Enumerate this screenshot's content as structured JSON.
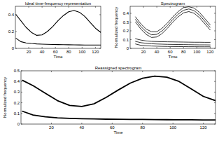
{
  "chart_data": [
    {
      "type": "line",
      "title": "Ideal time-frequency representation",
      "xlabel": "Time",
      "x": [
        1,
        8,
        16,
        24,
        32,
        40,
        48,
        56,
        64,
        72,
        80,
        88,
        96,
        104,
        112,
        120,
        128
      ],
      "series": [
        {
          "color": "#000000",
          "line_style": "solid",
          "values": [
            0.4,
            0.33,
            0.25,
            0.19,
            0.155,
            0.16,
            0.2,
            0.26,
            0.33,
            0.39,
            0.435,
            0.45,
            0.43,
            0.38,
            0.31,
            0.24,
            0.19
          ]
        },
        {
          "color": "#000000",
          "line_style": "solid",
          "values": [
            0.12,
            0.08,
            0.065,
            0.058,
            0.053,
            0.05,
            0.048,
            0.046,
            0.045,
            0.044,
            0.043,
            0.042,
            0.041,
            0.04,
            0.04,
            0.039,
            0.039
          ]
        }
      ],
      "xlim": [
        0,
        128
      ],
      "ylim": [
        0,
        0.5
      ],
      "xticks": [
        20,
        40,
        60,
        80,
        100,
        120
      ],
      "yticks": [
        0,
        0.2,
        0.4
      ]
    },
    {
      "type": "line",
      "title": "Spectrogram",
      "xlabel": "Time",
      "ylabel": "Normalized frequency",
      "x": [
        1,
        8,
        16,
        24,
        32,
        40,
        48,
        56,
        64,
        72,
        80,
        88,
        96,
        104,
        112,
        120,
        128
      ],
      "series": [
        {
          "color": "#000000",
          "line_style": "solid",
          "values": [
            null,
            0.36,
            0.28,
            0.22,
            0.19,
            0.19,
            0.23,
            0.29,
            0.36,
            0.42,
            0.465,
            0.475,
            0.46,
            0.41,
            0.34,
            0.27,
            null
          ]
        },
        {
          "color": "#000000",
          "line_style": "solid",
          "values": [
            null,
            0.33,
            0.25,
            0.19,
            0.155,
            0.16,
            0.2,
            0.26,
            0.33,
            0.39,
            0.435,
            0.45,
            0.43,
            0.38,
            0.31,
            0.24,
            null
          ]
        },
        {
          "color": "#000000",
          "line_style": "solid",
          "values": [
            null,
            0.3,
            0.22,
            0.16,
            0.125,
            0.13,
            0.17,
            0.23,
            0.3,
            0.36,
            0.405,
            0.42,
            0.4,
            0.35,
            0.28,
            0.21,
            null
          ]
        },
        {
          "color": "#000000",
          "line_style": "solid",
          "values": [
            null,
            0.11,
            0.095,
            0.085,
            0.08,
            0.078,
            0.076,
            0.075,
            0.074,
            0.073,
            0.072,
            0.071,
            0.07,
            0.07,
            0.069,
            0.069,
            null
          ]
        },
        {
          "color": "#000000",
          "line_style": "solid",
          "values": [
            null,
            0.08,
            0.065,
            0.058,
            0.053,
            0.05,
            0.048,
            0.046,
            0.045,
            0.044,
            0.043,
            0.042,
            0.041,
            0.04,
            0.04,
            0.039,
            null
          ]
        },
        {
          "color": "#000000",
          "line_style": "solid",
          "values": [
            null,
            0.05,
            0.035,
            0.03,
            0.027,
            0.025,
            0.023,
            0.022,
            0.021,
            0.02,
            0.02,
            0.019,
            0.019,
            0.018,
            0.018,
            0.018,
            null
          ]
        }
      ],
      "xlim": [
        0,
        128
      ],
      "ylim": [
        0,
        0.48
      ],
      "xticks": [
        20,
        40,
        60,
        80,
        100,
        120
      ],
      "yticks": [
        0,
        0.1,
        0.2,
        0.3,
        0.4
      ]
    },
    {
      "type": "line",
      "title": "Reassigned spectrogram",
      "xlabel": "Time",
      "ylabel": "Normalized frequency",
      "x": [
        1,
        8,
        16,
        24,
        32,
        40,
        48,
        56,
        64,
        72,
        80,
        88,
        96,
        104,
        112,
        120,
        128
      ],
      "series": [
        {
          "color": "#000000",
          "line_style": "solid",
          "values": [
            0.41,
            0.36,
            0.29,
            0.22,
            0.175,
            0.165,
            0.19,
            0.25,
            0.32,
            0.385,
            0.43,
            0.45,
            0.44,
            0.4,
            0.33,
            0.26,
            0.22
          ]
        },
        {
          "color": "#000000",
          "line_style": "solid",
          "values": [
            0.12,
            0.085,
            0.068,
            0.058,
            0.053,
            0.05,
            0.048,
            0.046,
            0.045,
            0.044,
            0.043,
            0.042,
            0.041,
            0.04,
            0.04,
            0.039,
            0.039
          ]
        }
      ],
      "xlim": [
        0,
        128
      ],
      "ylim": [
        0,
        0.5
      ],
      "xticks": [
        20,
        40,
        60,
        80,
        100,
        120
      ],
      "yticks": [
        0,
        0.1,
        0.2,
        0.3,
        0.4,
        0.5
      ]
    }
  ]
}
